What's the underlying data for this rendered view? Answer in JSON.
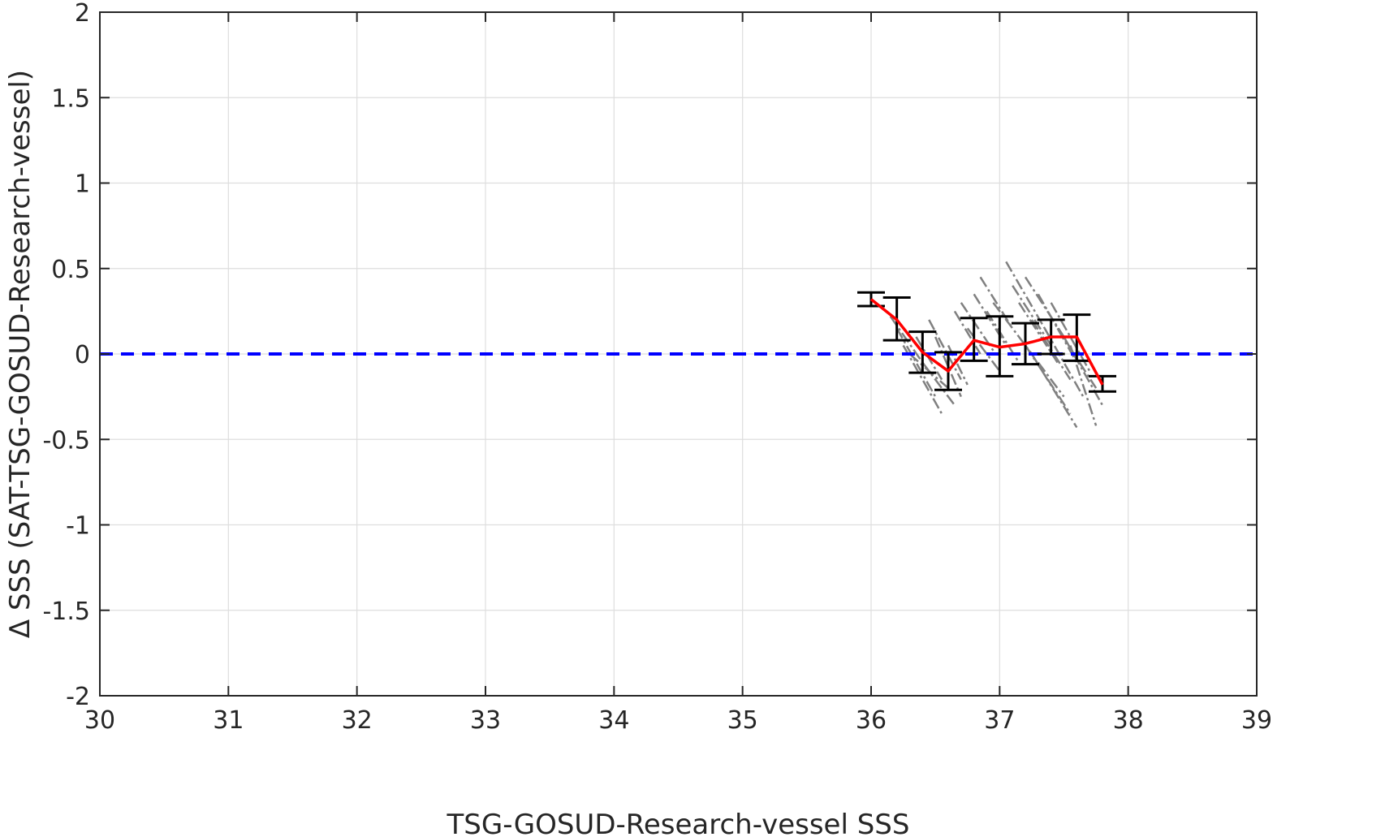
{
  "chart_data": {
    "type": "line",
    "xlabel": "TSG-GOSUD-Research-vessel SSS",
    "ylabel": "Δ SSS (SAT-TSG-GOSUD-Research-vessel)",
    "xlim": [
      30,
      39
    ],
    "ylim": [
      -2,
      2
    ],
    "xticks": [
      30,
      31,
      32,
      33,
      34,
      35,
      36,
      37,
      38,
      39
    ],
    "xtick_labels": [
      "30",
      "31",
      "32",
      "33",
      "34",
      "35",
      "36",
      "37",
      "38",
      "39"
    ],
    "yticks": [
      2,
      1.5,
      1,
      0.5,
      0,
      -0.5,
      -1,
      -1.5,
      -2
    ],
    "ytick_labels": [
      "2",
      "1.5",
      "1",
      "0.5",
      "0",
      "-0.5",
      "-1",
      "-1.5",
      "-2"
    ],
    "grid": true,
    "reference_line": {
      "y": 0,
      "style": "dashed",
      "color": "#0000ff"
    },
    "mean_line": {
      "color": "#ff0000",
      "x": [
        36.0,
        36.2,
        36.4,
        36.6,
        36.8,
        37.0,
        37.2,
        37.4,
        37.6,
        37.8
      ],
      "y": [
        0.32,
        0.2,
        0.01,
        -0.1,
        0.08,
        0.04,
        0.06,
        0.1,
        0.1,
        -0.18
      ]
    },
    "error_bars": {
      "color": "#000000",
      "x": [
        36.0,
        36.2,
        36.4,
        36.6,
        36.8,
        37.0,
        37.2,
        37.4,
        37.6,
        37.8
      ],
      "lower": [
        0.28,
        0.08,
        -0.11,
        -0.21,
        -0.04,
        -0.13,
        -0.06,
        0.0,
        -0.04,
        -0.22
      ],
      "upper": [
        0.36,
        0.33,
        0.13,
        0.01,
        0.21,
        0.22,
        0.18,
        0.2,
        0.23,
        -0.13
      ]
    },
    "colocation_segments": {
      "color": "#808080",
      "segments": [
        [
          36.15,
          0.22,
          36.4,
          -0.05
        ],
        [
          36.2,
          0.15,
          36.5,
          -0.25
        ],
        [
          36.25,
          0.05,
          36.55,
          -0.35
        ],
        [
          36.3,
          0.0,
          36.6,
          -0.2
        ],
        [
          36.35,
          0.1,
          36.55,
          -0.15
        ],
        [
          36.4,
          -0.05,
          36.65,
          -0.3
        ],
        [
          36.45,
          0.2,
          36.7,
          -0.15
        ],
        [
          36.5,
          0.1,
          36.7,
          -0.25
        ],
        [
          36.6,
          0.05,
          36.75,
          -0.18
        ],
        [
          36.65,
          0.25,
          36.85,
          0.0
        ],
        [
          36.7,
          0.3,
          36.95,
          0.02
        ],
        [
          36.75,
          0.15,
          37.0,
          -0.1
        ],
        [
          36.8,
          0.35,
          37.05,
          0.05
        ],
        [
          36.85,
          0.45,
          37.1,
          0.15
        ],
        [
          36.9,
          0.25,
          37.15,
          -0.05
        ],
        [
          36.95,
          0.3,
          37.25,
          0.0
        ],
        [
          37.05,
          0.54,
          37.35,
          0.15
        ],
        [
          37.1,
          0.4,
          37.4,
          0.05
        ],
        [
          37.15,
          0.3,
          37.45,
          -0.05
        ],
        [
          37.2,
          0.45,
          37.5,
          0.1
        ],
        [
          37.25,
          0.2,
          37.55,
          -0.15
        ],
        [
          37.3,
          0.35,
          37.6,
          -0.05
        ],
        [
          37.35,
          0.15,
          37.65,
          -0.25
        ],
        [
          37.2,
          0.05,
          37.55,
          -0.35
        ],
        [
          37.25,
          0.0,
          37.6,
          -0.43
        ],
        [
          37.4,
          0.3,
          37.7,
          -0.1
        ],
        [
          37.45,
          0.15,
          37.75,
          -0.2
        ],
        [
          37.5,
          0.1,
          37.8,
          -0.3
        ],
        [
          37.3,
          -0.05,
          37.5,
          -0.25
        ],
        [
          37.55,
          0.05,
          37.75,
          -0.42
        ]
      ]
    }
  }
}
